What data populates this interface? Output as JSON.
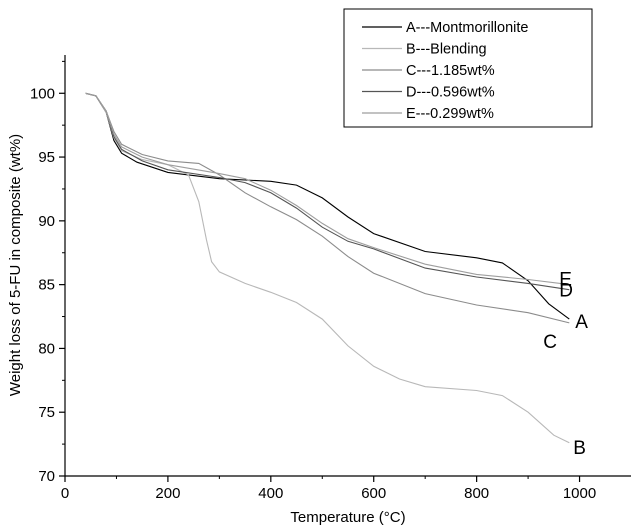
{
  "chart_data": {
    "type": "line",
    "xlabel": "Temperature (°C)",
    "ylabel": "Weight loss of 5-FU in composite (wt%)",
    "xlim": [
      0,
      1100
    ],
    "ylim": [
      70,
      103
    ],
    "x_ticks": [
      0,
      200,
      400,
      600,
      800,
      1000
    ],
    "y_ticks": [
      70,
      75,
      80,
      85,
      90,
      95,
      100
    ],
    "x_tick_labels": [
      "0",
      "200",
      "400",
      "600",
      "800",
      "1000"
    ],
    "y_tick_labels": [
      "70",
      "75",
      "80",
      "85",
      "90",
      "95",
      "100"
    ],
    "grid": false,
    "legend_position": "top-right",
    "series": [
      {
        "name": "A---Montmorillonite",
        "end_label": "A",
        "color": "#000000",
        "points": [
          [
            40,
            100
          ],
          [
            60,
            99.8
          ],
          [
            80,
            98.5
          ],
          [
            95,
            96.3
          ],
          [
            110,
            95.3
          ],
          [
            140,
            94.6
          ],
          [
            200,
            93.8
          ],
          [
            300,
            93.3
          ],
          [
            400,
            93.1
          ],
          [
            450,
            92.8
          ],
          [
            500,
            91.8
          ],
          [
            550,
            90.3
          ],
          [
            600,
            89
          ],
          [
            700,
            87.6
          ],
          [
            800,
            87.1
          ],
          [
            850,
            86.7
          ],
          [
            900,
            85.3
          ],
          [
            940,
            83.5
          ],
          [
            980,
            82.3
          ]
        ]
      },
      {
        "name": "B---Blending",
        "end_label": "B",
        "color": "#b8b8b8",
        "points": [
          [
            40,
            100
          ],
          [
            60,
            99.8
          ],
          [
            80,
            98.5
          ],
          [
            95,
            96.5
          ],
          [
            110,
            95.5
          ],
          [
            150,
            94.8
          ],
          [
            200,
            94.4
          ],
          [
            240,
            93.6
          ],
          [
            260,
            91.5
          ],
          [
            275,
            88.5
          ],
          [
            285,
            86.8
          ],
          [
            300,
            86
          ],
          [
            350,
            85.1
          ],
          [
            400,
            84.4
          ],
          [
            450,
            83.6
          ],
          [
            500,
            82.3
          ],
          [
            550,
            80.2
          ],
          [
            600,
            78.6
          ],
          [
            650,
            77.6
          ],
          [
            700,
            77
          ],
          [
            800,
            76.7
          ],
          [
            850,
            76.3
          ],
          [
            900,
            75
          ],
          [
            950,
            73.2
          ],
          [
            980,
            72.6
          ]
        ]
      },
      {
        "name": "C---1.185wt%",
        "end_label": "C",
        "color": "#8c8c8c",
        "points": [
          [
            40,
            100
          ],
          [
            60,
            99.8
          ],
          [
            80,
            98.6
          ],
          [
            95,
            97
          ],
          [
            110,
            96
          ],
          [
            150,
            95.2
          ],
          [
            200,
            94.7
          ],
          [
            260,
            94.5
          ],
          [
            300,
            93.6
          ],
          [
            350,
            92.2
          ],
          [
            400,
            91.1
          ],
          [
            450,
            90.1
          ],
          [
            500,
            88.8
          ],
          [
            550,
            87.2
          ],
          [
            600,
            85.9
          ],
          [
            700,
            84.3
          ],
          [
            800,
            83.4
          ],
          [
            900,
            82.8
          ],
          [
            980,
            82
          ]
        ]
      },
      {
        "name": "D---0.596wt%",
        "end_label": "D",
        "color": "#555555",
        "points": [
          [
            40,
            100
          ],
          [
            60,
            99.8
          ],
          [
            80,
            98.6
          ],
          [
            95,
            96.6
          ],
          [
            110,
            95.6
          ],
          [
            150,
            94.7
          ],
          [
            200,
            94
          ],
          [
            300,
            93.4
          ],
          [
            350,
            93
          ],
          [
            400,
            92.2
          ],
          [
            450,
            91
          ],
          [
            500,
            89.5
          ],
          [
            550,
            88.4
          ],
          [
            600,
            87.8
          ],
          [
            700,
            86.3
          ],
          [
            800,
            85.6
          ],
          [
            900,
            85.1
          ],
          [
            980,
            84.6
          ]
        ]
      },
      {
        "name": "E---0.299wt%",
        "end_label": "E",
        "color": "#9e9e9e",
        "points": [
          [
            40,
            100
          ],
          [
            60,
            99.8
          ],
          [
            80,
            98.6
          ],
          [
            95,
            96.8
          ],
          [
            110,
            95.8
          ],
          [
            150,
            95
          ],
          [
            200,
            94.4
          ],
          [
            300,
            93.7
          ],
          [
            350,
            93.3
          ],
          [
            400,
            92.4
          ],
          [
            450,
            91.2
          ],
          [
            500,
            89.8
          ],
          [
            550,
            88.6
          ],
          [
            600,
            87.9
          ],
          [
            700,
            86.6
          ],
          [
            800,
            85.8
          ],
          [
            900,
            85.4
          ],
          [
            980,
            85
          ]
        ]
      }
    ]
  }
}
